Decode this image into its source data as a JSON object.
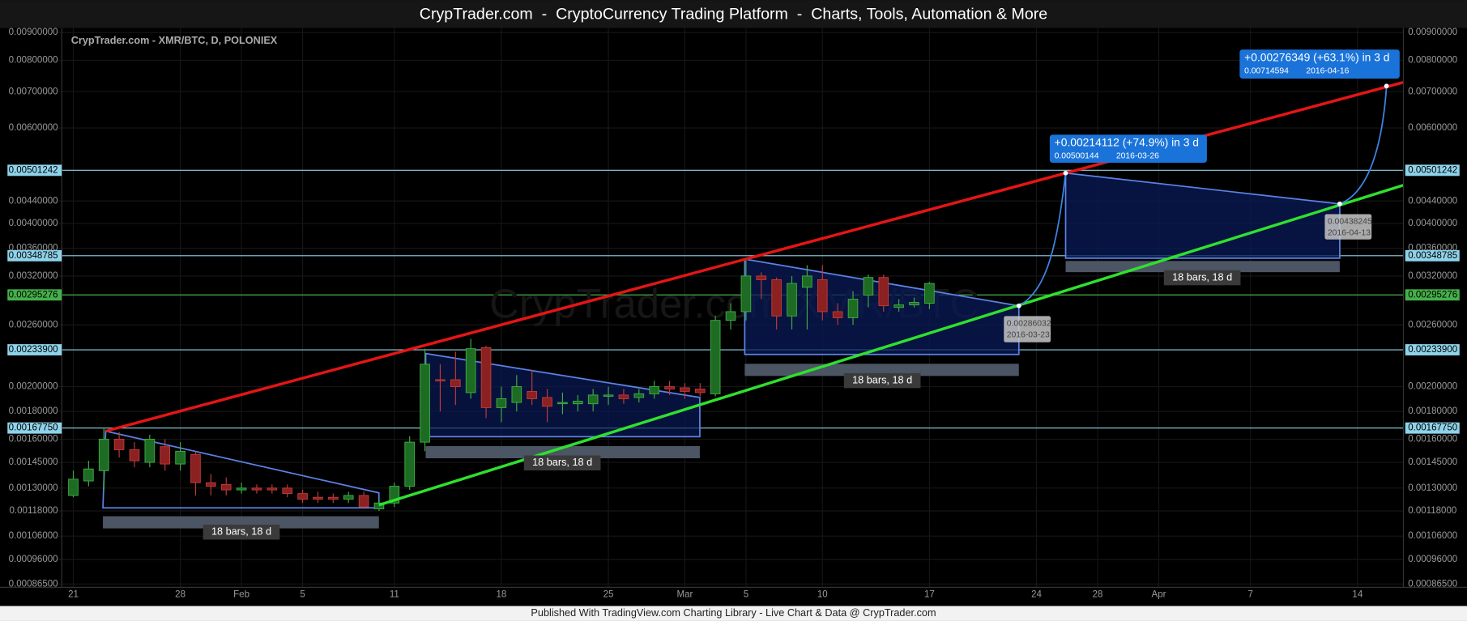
{
  "header": {
    "title": "CrypTrader.com  -  CryptoCurrency Trading Platform  -  Charts, Tools, Automation & More"
  },
  "chart_data": {
    "type": "candlestick",
    "title": "CrypTrader.com - XMR/BTC, D, POLONIEX",
    "watermark": "CrypTrader.com XMR/BTC",
    "log": true,
    "grid": true,
    "up_color": "#1e6b24",
    "down_color": "#8c2121",
    "up_edge": "#3fae46",
    "down_edge": "#c23a3a",
    "xlim": [
      "2016-01-20",
      "2016-04-17"
    ],
    "xticks": [
      {
        "value": "2016-01-21",
        "label": "21"
      },
      {
        "value": "2016-01-28",
        "label": "28"
      },
      {
        "value": "2016-02-01",
        "label": "Feb"
      },
      {
        "value": "2016-02-05",
        "label": "5"
      },
      {
        "value": "2016-02-11",
        "label": "11"
      },
      {
        "value": "2016-02-18",
        "label": "18"
      },
      {
        "value": "2016-02-25",
        "label": "25"
      },
      {
        "value": "2016-03-01",
        "label": "Mar"
      },
      {
        "value": "2016-03-05",
        "label": "5"
      },
      {
        "value": "2016-03-10",
        "label": "10"
      },
      {
        "value": "2016-03-17",
        "label": "17"
      },
      {
        "value": "2016-03-24",
        "label": "24"
      },
      {
        "value": "2016-03-28",
        "label": "28"
      },
      {
        "value": "2016-04-01",
        "label": "Apr"
      },
      {
        "value": "2016-04-07",
        "label": "7"
      },
      {
        "value": "2016-04-14",
        "label": "14"
      }
    ],
    "ylim": [
      0.000853,
      0.00917
    ],
    "yticks": [
      {
        "value": 0.000865,
        "label": "0.00086500"
      },
      {
        "value": 0.00096,
        "label": "0.00096000"
      },
      {
        "value": 0.00106,
        "label": "0.00106000"
      },
      {
        "value": 0.00118,
        "label": "0.00118000"
      },
      {
        "value": 0.0013,
        "label": "0.00130000"
      },
      {
        "value": 0.00145,
        "label": "0.00145000"
      },
      {
        "value": 0.0016,
        "label": "0.00160000"
      },
      {
        "value": 0.0018,
        "label": "0.00180000"
      },
      {
        "value": 0.002,
        "label": "0.00200000"
      },
      {
        "value": 0.0026,
        "label": "0.00260000"
      },
      {
        "value": 0.0032,
        "label": "0.00320000"
      },
      {
        "value": 0.0036,
        "label": "0.00360000"
      },
      {
        "value": 0.004,
        "label": "0.00400000"
      },
      {
        "value": 0.0044,
        "label": "0.00440000"
      },
      {
        "value": 0.006,
        "label": "0.00600000"
      },
      {
        "value": 0.007,
        "label": "0.00700000"
      },
      {
        "value": 0.008,
        "label": "0.00800000"
      },
      {
        "value": 0.009,
        "label": "0.00900000"
      }
    ],
    "x": [
      "2016-01-21",
      "2016-01-22",
      "2016-01-23",
      "2016-01-24",
      "2016-01-25",
      "2016-01-26",
      "2016-01-27",
      "2016-01-28",
      "2016-01-29",
      "2016-01-30",
      "2016-01-31",
      "2016-02-01",
      "2016-02-02",
      "2016-02-03",
      "2016-02-04",
      "2016-02-05",
      "2016-02-06",
      "2016-02-07",
      "2016-02-08",
      "2016-02-09",
      "2016-02-10",
      "2016-02-11",
      "2016-02-12",
      "2016-02-13",
      "2016-02-14",
      "2016-02-15",
      "2016-02-16",
      "2016-02-17",
      "2016-02-18",
      "2016-02-19",
      "2016-02-20",
      "2016-02-21",
      "2016-02-22",
      "2016-02-23",
      "2016-02-24",
      "2016-02-25",
      "2016-02-26",
      "2016-02-27",
      "2016-02-28",
      "2016-02-29",
      "2016-03-01",
      "2016-03-02",
      "2016-03-03",
      "2016-03-04",
      "2016-03-05",
      "2016-03-06",
      "2016-03-07",
      "2016-03-08",
      "2016-03-09",
      "2016-03-10",
      "2016-03-11",
      "2016-03-12",
      "2016-03-13",
      "2016-03-14",
      "2016-03-15",
      "2016-03-16",
      "2016-03-17"
    ],
    "open": [
      0.00126,
      0.00134,
      0.0014,
      0.0016,
      0.00153,
      0.00145,
      0.00155,
      0.00144,
      0.0015,
      0.00133,
      0.00132,
      0.00129,
      0.0013,
      0.0013,
      0.0013,
      0.00127,
      0.00125,
      0.00125,
      0.00124,
      0.00126,
      0.00119,
      0.00122,
      0.00131,
      0.00158,
      0.00206,
      0.00206,
      0.00195,
      0.00236,
      0.00183,
      0.00187,
      0.00196,
      0.00191,
      0.00186,
      0.00186,
      0.00186,
      0.00192,
      0.00193,
      0.00191,
      0.00194,
      0.002,
      0.00199,
      0.00198,
      0.00194,
      0.00265,
      0.00275,
      0.0032,
      0.00315,
      0.0027,
      0.00305,
      0.00315,
      0.00275,
      0.00268,
      0.00295,
      0.00318,
      0.0028,
      0.00283,
      0.00285
    ],
    "high": [
      0.0014,
      0.00146,
      0.00168,
      0.00165,
      0.00158,
      0.00163,
      0.0016,
      0.00158,
      0.00152,
      0.00138,
      0.00136,
      0.00133,
      0.00132,
      0.00132,
      0.00132,
      0.00129,
      0.00128,
      0.00127,
      0.00128,
      0.00128,
      0.00124,
      0.00133,
      0.00162,
      0.00235,
      0.0022,
      0.00232,
      0.00245,
      0.00238,
      0.002,
      0.0021,
      0.00215,
      0.00198,
      0.00195,
      0.00193,
      0.00198,
      0.002,
      0.00198,
      0.00198,
      0.00205,
      0.00205,
      0.00203,
      0.00203,
      0.0027,
      0.00285,
      0.00345,
      0.00325,
      0.00318,
      0.0032,
      0.00335,
      0.00335,
      0.00285,
      0.003,
      0.00322,
      0.00322,
      0.0029,
      0.00292,
      0.00312
    ],
    "low": [
      0.00125,
      0.00131,
      0.00129,
      0.00148,
      0.00142,
      0.00142,
      0.0014,
      0.0014,
      0.00126,
      0.00126,
      0.00126,
      0.00127,
      0.00127,
      0.00127,
      0.00125,
      0.00122,
      0.00122,
      0.00122,
      0.00122,
      0.00119,
      0.00118,
      0.0012,
      0.00129,
      0.00152,
      0.0018,
      0.00185,
      0.0019,
      0.00175,
      0.00172,
      0.0018,
      0.00185,
      0.00172,
      0.00178,
      0.0018,
      0.0018,
      0.00185,
      0.00186,
      0.00187,
      0.0019,
      0.00193,
      0.0019,
      0.00192,
      0.00192,
      0.00255,
      0.00265,
      0.0029,
      0.00255,
      0.00255,
      0.00255,
      0.00265,
      0.0026,
      0.0026,
      0.0028,
      0.00275,
      0.00275,
      0.0028,
      0.00278
    ],
    "close": [
      0.00135,
      0.00141,
      0.0016,
      0.00153,
      0.00146,
      0.0016,
      0.00144,
      0.00152,
      0.00133,
      0.00131,
      0.00129,
      0.0013,
      0.00129,
      0.00129,
      0.00127,
      0.00124,
      0.00124,
      0.00124,
      0.00126,
      0.0012,
      0.00122,
      0.00131,
      0.00158,
      0.0022,
      0.00205,
      0.002,
      0.00235,
      0.00183,
      0.0019,
      0.002,
      0.0019,
      0.00184,
      0.00187,
      0.00188,
      0.00193,
      0.00193,
      0.0019,
      0.00194,
      0.002,
      0.00198,
      0.00196,
      0.00195,
      0.00265,
      0.00275,
      0.0032,
      0.00315,
      0.0027,
      0.0031,
      0.0032,
      0.00275,
      0.00268,
      0.0029,
      0.00318,
      0.00282,
      0.00283,
      0.00286,
      0.0031
    ],
    "price_lines": [
      {
        "value": 0.00501242,
        "label": "0.00501242",
        "color": "#8fd3ea"
      },
      {
        "value": 0.00348785,
        "label": "0.00348785",
        "color": "#8fd3ea"
      },
      {
        "value": 0.00295276,
        "label": "0.00295276",
        "color": "#45b04a"
      },
      {
        "value": 0.002339,
        "label": "0.00233900",
        "color": "#8fd3ea"
      },
      {
        "value": 0.0016775,
        "label": "0.00167750",
        "color": "#8fd3ea"
      }
    ],
    "annotations": {
      "patterns": [
        "18 bars, 18 d",
        "18 bars, 18 d",
        "18 bars, 18 d",
        "18 bars, 18 d"
      ],
      "projections": [
        {
          "change": "+0.00214112 (+74.9%) in 3 d",
          "price": "0.00500144",
          "date": "2016-03-26"
        },
        {
          "change": "+0.00276349 (+63.1%) in 3 d",
          "price": "0.00714594",
          "date": "2016-04-16"
        }
      ],
      "points": [
        {
          "price": "0.00286032",
          "date": "2016-03-23"
        },
        {
          "price": "0.00438245",
          "date": "2016-04-13"
        }
      ]
    }
  },
  "footer": "Published With TradingView.com Charting Library - Live Chart & Data @ CrypTrader.com"
}
